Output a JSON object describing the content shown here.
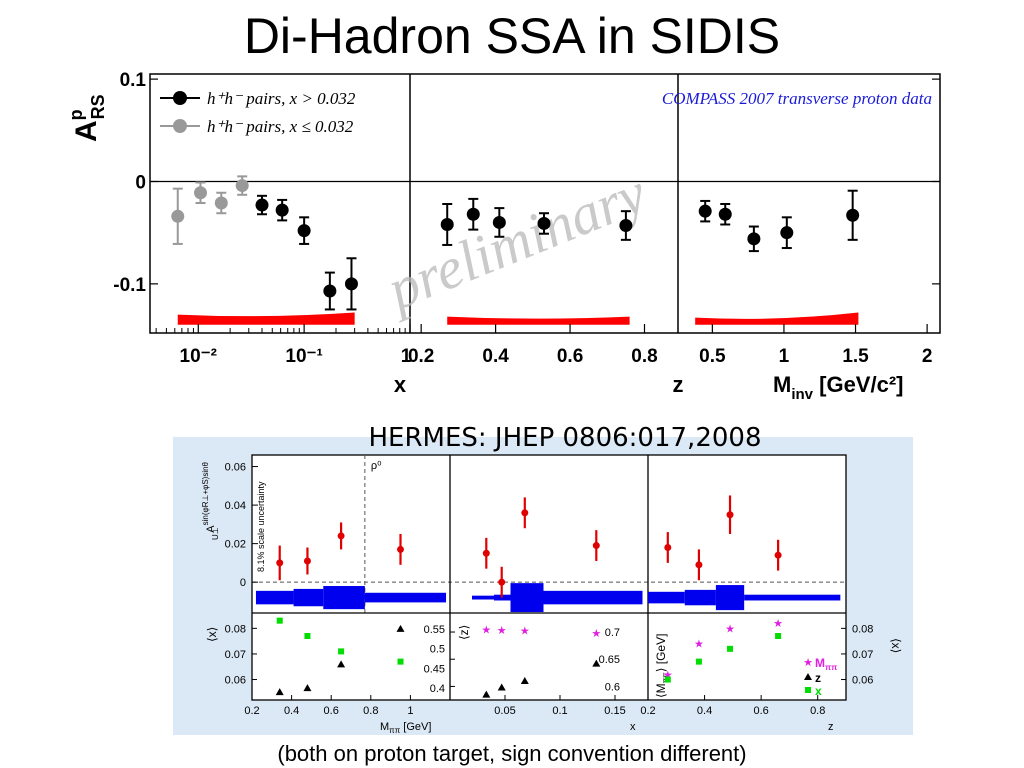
{
  "slide": {
    "title": "Di-Hadron SSA in SIDIS",
    "caption": "(both on proton target, sign convention different)"
  },
  "colors": {
    "black_series": "#000000",
    "gray_series": "#999999",
    "systematic_band": "#ff0000",
    "compass_label": "#1a1ad6",
    "watermark": "#b8b8b8",
    "hermes_points": "#e00000",
    "hermes_band": "#0000ee",
    "hermes_bg": "#dbe8f5",
    "magenta": "#e020e0",
    "green": "#00dd00"
  },
  "chart_data": [
    {
      "id": "compass",
      "type": "scatter",
      "experiment_label": "COMPASS 2007 transverse proton data",
      "watermark": "preliminary",
      "ylabel": "A",
      "ylabel_sup": "p",
      "ylabel_sub": "RS",
      "ylim": [
        -0.148,
        0.105
      ],
      "yticks": [
        {
          "v": 0.1,
          "label": "0.1"
        },
        {
          "v": 0,
          "label": "0"
        },
        {
          "v": -0.1,
          "label": "-0.1"
        }
      ],
      "legend": [
        {
          "color": "black",
          "text": "h⁺h⁻ pairs, x > 0.032"
        },
        {
          "color": "gray",
          "text": "h⁺h⁻ pairs, x ≤ 0.032"
        }
      ],
      "panels": [
        {
          "xlabel": "x",
          "xscale": "log",
          "xlim": [
            0.0035,
            1.0
          ],
          "xticks": [
            {
              "v": 0.01,
              "label": "10⁻²"
            },
            {
              "v": 0.1,
              "label": "10⁻¹"
            },
            {
              "v": 1,
              "label": "1"
            }
          ],
          "points": [
            {
              "x": 0.0064,
              "y": -0.034,
              "err": 0.027,
              "color": "gray"
            },
            {
              "x": 0.0105,
              "y": -0.011,
              "err": 0.01,
              "color": "gray"
            },
            {
              "x": 0.0165,
              "y": -0.021,
              "err": 0.01,
              "color": "gray"
            },
            {
              "x": 0.026,
              "y": -0.004,
              "err": 0.009,
              "color": "gray"
            },
            {
              "x": 0.04,
              "y": -0.023,
              "err": 0.009,
              "color": "black"
            },
            {
              "x": 0.062,
              "y": -0.028,
              "err": 0.01,
              "color": "black"
            },
            {
              "x": 0.1,
              "y": -0.048,
              "err": 0.013,
              "color": "black"
            },
            {
              "x": 0.175,
              "y": -0.107,
              "err": 0.018,
              "color": "black"
            },
            {
              "x": 0.28,
              "y": -0.1,
              "err": 0.025,
              "color": "black"
            }
          ],
          "band": {
            "x": [
              0.0064,
              0.3
            ],
            "low": -0.14,
            "high_start": -0.13,
            "high_end": -0.128
          }
        },
        {
          "xlabel": "z",
          "xscale": "linear",
          "xlim": [
            0.17,
            0.89
          ],
          "xticks": [
            {
              "v": 0.2,
              "label": "0.2"
            },
            {
              "v": 0.4,
              "label": "0.4"
            },
            {
              "v": 0.6,
              "label": "0.6"
            },
            {
              "v": 0.8,
              "label": "0.8"
            }
          ],
          "points": [
            {
              "x": 0.27,
              "y": -0.042,
              "err": 0.02,
              "color": "black"
            },
            {
              "x": 0.34,
              "y": -0.032,
              "err": 0.015,
              "color": "black"
            },
            {
              "x": 0.41,
              "y": -0.04,
              "err": 0.014,
              "color": "black"
            },
            {
              "x": 0.53,
              "y": -0.041,
              "err": 0.01,
              "color": "black"
            },
            {
              "x": 0.75,
              "y": -0.043,
              "err": 0.014,
              "color": "black"
            }
          ],
          "band": {
            "x": [
              0.27,
              0.76
            ],
            "low": -0.14,
            "high_start": -0.132,
            "high_end": -0.132
          }
        },
        {
          "xlabel": "M",
          "xlabel_sub": "inv",
          "xlabel_unit": "[GeV/c²]",
          "xscale": "linear",
          "xlim": [
            0.26,
            2.09
          ],
          "xticks": [
            {
              "v": 0.5,
              "label": "0.5"
            },
            {
              "v": 1,
              "label": "1"
            },
            {
              "v": 1.5,
              "label": "1.5"
            },
            {
              "v": 2,
              "label": "2"
            }
          ],
          "points": [
            {
              "x": 0.45,
              "y": -0.029,
              "err": 0.01,
              "color": "black"
            },
            {
              "x": 0.59,
              "y": -0.032,
              "err": 0.01,
              "color": "black"
            },
            {
              "x": 0.79,
              "y": -0.056,
              "err": 0.012,
              "color": "black"
            },
            {
              "x": 1.02,
              "y": -0.05,
              "err": 0.015,
              "color": "black"
            },
            {
              "x": 1.48,
              "y": -0.033,
              "err": 0.024,
              "color": "black"
            }
          ],
          "band": {
            "x": [
              0.38,
              1.52
            ],
            "low": -0.14,
            "high_start": -0.133,
            "high_end": -0.128
          }
        }
      ]
    },
    {
      "id": "hermes",
      "type": "scatter",
      "title": "HERMES: JHEP 0806:017,2008",
      "ylabel": "A",
      "ylabel_sup": "sin(φR⊥+φS)sinθ",
      "ylabel_sub": "U⊥",
      "scale_note": "8.1% scale uncertainty",
      "rho_label": "ρ⁰",
      "ylim": [
        -0.016,
        0.066
      ],
      "yticks": [
        {
          "v": 0.06,
          "label": "0.06"
        },
        {
          "v": 0.04,
          "label": "0.04"
        },
        {
          "v": 0.02,
          "label": "0.02"
        },
        {
          "v": 0,
          "label": "0"
        }
      ],
      "legend": [
        {
          "marker": "star",
          "color": "magenta",
          "text": "M",
          "sub": "ππ"
        },
        {
          "marker": "triangle",
          "color": "black",
          "text": "z"
        },
        {
          "marker": "square",
          "color": "green",
          "text": "x"
        }
      ],
      "panels": [
        {
          "xlabel": "M",
          "xlabel_sub": "ππ",
          "xlabel_unit": "[GeV]",
          "xlim": [
            0.2,
            1.2
          ],
          "xticks": [
            {
              "v": 0.2,
              "label": "0.2"
            },
            {
              "v": 0.4,
              "label": "0.4"
            },
            {
              "v": 0.6,
              "label": "0.6"
            },
            {
              "v": 0.8,
              "label": "0.8"
            },
            {
              "v": 1.0,
              "label": "1"
            }
          ],
          "rho_x": 0.77,
          "points": [
            {
              "x": 0.34,
              "y": 0.01,
              "err": 0.009
            },
            {
              "x": 0.48,
              "y": 0.011,
              "err": 0.007
            },
            {
              "x": 0.65,
              "y": 0.024,
              "err": 0.007
            },
            {
              "x": 0.95,
              "y": 0.017,
              "err": 0.008
            }
          ],
          "band": [
            {
              "x0": 0.22,
              "x1": 0.41,
              "h": 0.0035
            },
            {
              "x0": 0.41,
              "x1": 0.56,
              "h": 0.0045
            },
            {
              "x0": 0.56,
              "x1": 0.77,
              "h": 0.006
            },
            {
              "x0": 0.77,
              "x1": 1.18,
              "h": 0.0025
            }
          ],
          "sub_ylabel": "⟨x⟩",
          "sub_yticks": [
            {
              "v": 0.08,
              "label": "0.08"
            },
            {
              "v": 0.07,
              "label": "0.07"
            },
            {
              "v": 0.06,
              "label": "0.06"
            }
          ],
          "sub_ylim": [
            0.052,
            0.086
          ],
          "sub_y2label": "⟨z⟩",
          "sub_y2ticks": [
            {
              "v": 0.55,
              "label": "0.55"
            },
            {
              "v": 0.5,
              "label": "0.5"
            },
            {
              "v": 0.45,
              "label": "0.45"
            },
            {
              "v": 0.4,
              "label": "0.4"
            }
          ],
          "sub_y2lim": [
            0.37,
            0.59
          ],
          "sub_points": [
            {
              "x": 0.34,
              "y": 0.083,
              "marker": "square",
              "color": "green",
              "axis": "left"
            },
            {
              "x": 0.48,
              "y": 0.077,
              "marker": "square",
              "color": "green",
              "axis": "left"
            },
            {
              "x": 0.65,
              "y": 0.071,
              "marker": "square",
              "color": "green",
              "axis": "left"
            },
            {
              "x": 0.95,
              "y": 0.067,
              "marker": "square",
              "color": "green",
              "axis": "left"
            },
            {
              "x": 0.34,
              "y": 0.39,
              "marker": "triangle",
              "color": "black",
              "axis": "right"
            },
            {
              "x": 0.48,
              "y": 0.4,
              "marker": "triangle",
              "color": "black",
              "axis": "right"
            },
            {
              "x": 0.65,
              "y": 0.46,
              "marker": "triangle",
              "color": "black",
              "axis": "right"
            },
            {
              "x": 0.95,
              "y": 0.55,
              "marker": "triangle",
              "color": "black",
              "axis": "right"
            }
          ]
        },
        {
          "xlabel": "x",
          "xlim": [
            0,
            0.18
          ],
          "xticks": [
            {
              "v": 0.05,
              "label": "0.05"
            },
            {
              "v": 0.1,
              "label": "0.1"
            },
            {
              "v": 0.15,
              "label": "0.15"
            }
          ],
          "points": [
            {
              "x": 0.033,
              "y": 0.015,
              "err": 0.008
            },
            {
              "x": 0.047,
              "y": 0.0,
              "err": 0.008
            },
            {
              "x": 0.068,
              "y": 0.036,
              "err": 0.008
            },
            {
              "x": 0.133,
              "y": 0.019,
              "err": 0.008
            }
          ],
          "band": [
            {
              "x0": 0.02,
              "x1": 0.04,
              "h": 0.001
            },
            {
              "x0": 0.04,
              "x1": 0.055,
              "h": 0.0015
            },
            {
              "x0": 0.055,
              "x1": 0.085,
              "h": 0.0075
            },
            {
              "x0": 0.085,
              "x1": 0.175,
              "h": 0.0035
            }
          ],
          "sub_ylabel": "⟨z⟩",
          "sub_yticks": [
            {
              "v": 0.7,
              "label": "0.7"
            },
            {
              "v": 0.65,
              "label": "0.65"
            },
            {
              "v": 0.6,
              "label": "0.6"
            }
          ],
          "sub_ylim": [
            0.575,
            0.735
          ],
          "sub_points": [
            {
              "x": 0.033,
              "y": 0.705,
              "marker": "star",
              "color": "magenta"
            },
            {
              "x": 0.047,
              "y": 0.704,
              "marker": "star",
              "color": "magenta"
            },
            {
              "x": 0.068,
              "y": 0.703,
              "marker": "star",
              "color": "magenta"
            },
            {
              "x": 0.133,
              "y": 0.698,
              "marker": "star",
              "color": "magenta"
            },
            {
              "x": 0.033,
              "y": 0.585,
              "marker": "triangle",
              "color": "black"
            },
            {
              "x": 0.047,
              "y": 0.598,
              "marker": "triangle",
              "color": "black"
            },
            {
              "x": 0.068,
              "y": 0.61,
              "marker": "triangle",
              "color": "black"
            },
            {
              "x": 0.133,
              "y": 0.642,
              "marker": "triangle",
              "color": "black"
            }
          ]
        },
        {
          "xlabel": "z",
          "xlim": [
            0.2,
            0.9
          ],
          "xticks": [
            {
              "v": 0.2,
              "label": "0.2"
            },
            {
              "v": 0.4,
              "label": "0.4"
            },
            {
              "v": 0.6,
              "label": "0.6"
            },
            {
              "v": 0.8,
              "label": "0.8"
            }
          ],
          "points": [
            {
              "x": 0.27,
              "y": 0.018,
              "err": 0.008
            },
            {
              "x": 0.38,
              "y": 0.009,
              "err": 0.008
            },
            {
              "x": 0.49,
              "y": 0.035,
              "err": 0.01
            },
            {
              "x": 0.66,
              "y": 0.014,
              "err": 0.008
            }
          ],
          "band": [
            {
              "x0": 0.2,
              "x1": 0.33,
              "h": 0.003
            },
            {
              "x0": 0.33,
              "x1": 0.44,
              "h": 0.004
            },
            {
              "x0": 0.44,
              "x1": 0.54,
              "h": 0.0065
            },
            {
              "x0": 0.54,
              "x1": 0.88,
              "h": 0.0015
            }
          ],
          "sub_ylabel": "⟨M",
          "sub_ylabel_sub": "ππ",
          "sub_ylabel_tail": "⟩ [GeV]",
          "sub_y2label": "⟨x⟩",
          "sub_y2ticks": [
            {
              "v": 0.08,
              "label": "0.08"
            },
            {
              "v": 0.07,
              "label": "0.07"
            },
            {
              "v": 0.06,
              "label": "0.06"
            }
          ],
          "sub_y2lim": [
            0.052,
            0.086
          ],
          "sub_points": [
            {
              "x": 0.27,
              "y": 0.062,
              "marker": "star",
              "color": "magenta",
              "axis": "right"
            },
            {
              "x": 0.38,
              "y": 0.074,
              "marker": "star",
              "color": "magenta",
              "axis": "right"
            },
            {
              "x": 0.49,
              "y": 0.08,
              "marker": "star",
              "color": "magenta",
              "axis": "right"
            },
            {
              "x": 0.66,
              "y": 0.082,
              "marker": "star",
              "color": "magenta",
              "axis": "right"
            },
            {
              "x": 0.27,
              "y": 0.06,
              "marker": "square",
              "color": "green",
              "axis": "right"
            },
            {
              "x": 0.38,
              "y": 0.067,
              "marker": "square",
              "color": "green",
              "axis": "right"
            },
            {
              "x": 0.49,
              "y": 0.072,
              "marker": "square",
              "color": "green",
              "axis": "right"
            },
            {
              "x": 0.66,
              "y": 0.077,
              "marker": "square",
              "color": "green",
              "axis": "right"
            }
          ]
        }
      ]
    }
  ]
}
